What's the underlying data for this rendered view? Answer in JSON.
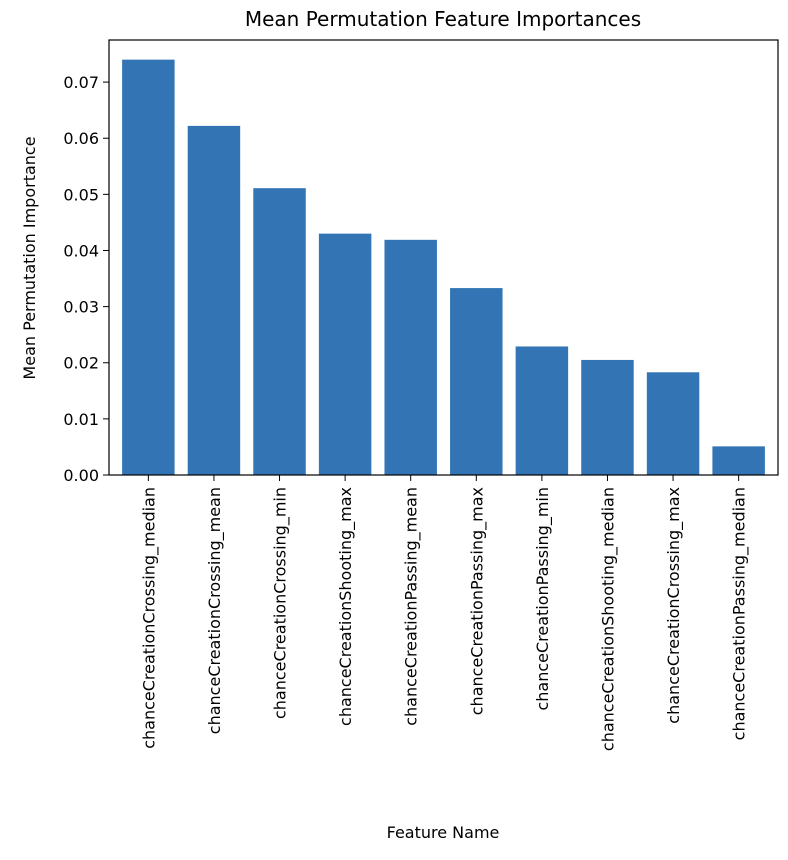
{
  "chart_data": {
    "type": "bar",
    "title": "Mean Permutation Feature Importances",
    "xlabel": "Feature Name",
    "ylabel": "Mean Permutation Importance",
    "categories": [
      "chanceCreationCrossing_median",
      "chanceCreationCrossing_mean",
      "chanceCreationCrossing_min",
      "chanceCreationShooting_max",
      "chanceCreationPassing_mean",
      "chanceCreationPassing_max",
      "chanceCreationPassing_min",
      "chanceCreationShooting_median",
      "chanceCreationCrossing_max",
      "chanceCreationPassing_median"
    ],
    "values": [
      0.074,
      0.0622,
      0.0511,
      0.043,
      0.0419,
      0.0333,
      0.0229,
      0.0205,
      0.0183,
      0.0051
    ],
    "ylim": [
      0,
      0.0775
    ],
    "yticks": [
      0.0,
      0.01,
      0.02,
      0.03,
      0.04,
      0.05,
      0.06,
      0.07
    ],
    "ytick_labels": [
      "0.00",
      "0.01",
      "0.02",
      "0.03",
      "0.04",
      "0.05",
      "0.06",
      "0.07"
    ],
    "grid": false,
    "bar_color": "#3274b4"
  }
}
